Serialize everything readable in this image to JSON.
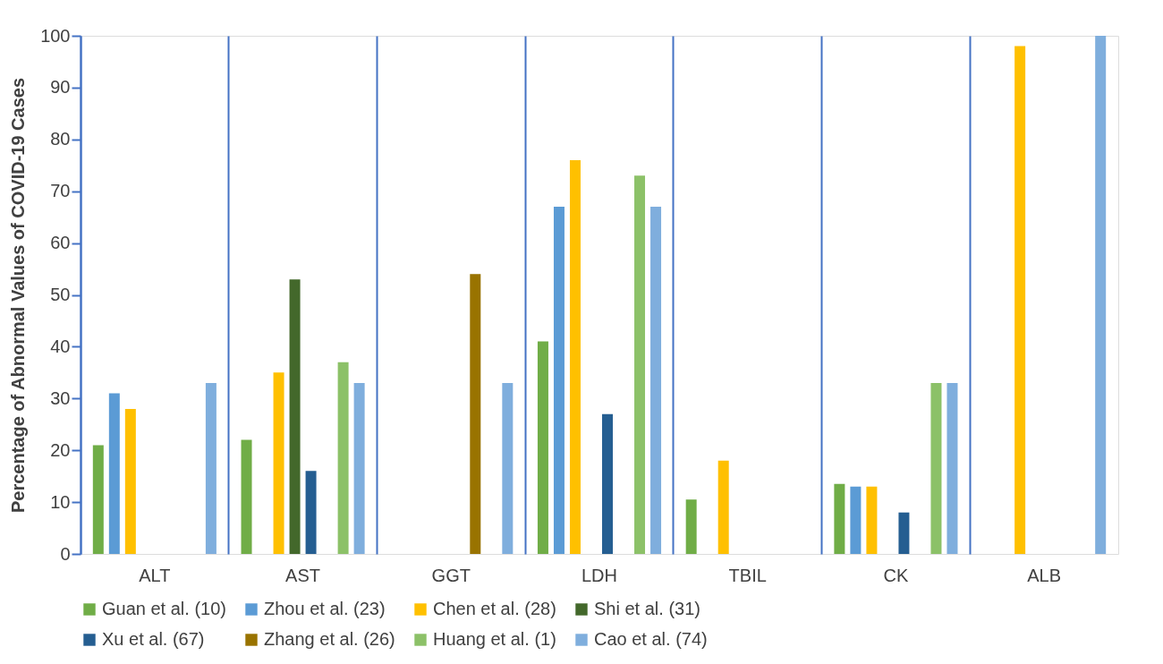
{
  "chart_data": {
    "type": "bar",
    "ylabel": "Percentage of Abnormal Values of COVID-19 Cases",
    "categories": [
      "ALT",
      "AST",
      "GGT",
      "LDH",
      "TBIL",
      "CK",
      "ALB"
    ],
    "series": [
      {
        "name": "Guan et al. (10)",
        "color": "#70ad47",
        "values": [
          21,
          22,
          null,
          41,
          10.5,
          13.5,
          null
        ]
      },
      {
        "name": "Zhou et al. (23)",
        "color": "#5b9bd5",
        "values": [
          31,
          null,
          null,
          67,
          null,
          13,
          null
        ]
      },
      {
        "name": "Chen et al. (28)",
        "color": "#ffc000",
        "values": [
          28,
          35,
          null,
          76,
          18,
          13,
          98
        ]
      },
      {
        "name": "Shi et al. (31)",
        "color": "#43682b",
        "values": [
          null,
          53,
          null,
          null,
          null,
          null,
          null
        ]
      },
      {
        "name": "Xu et al. (67)",
        "color": "#255e91",
        "values": [
          null,
          16,
          null,
          27,
          null,
          8,
          null
        ]
      },
      {
        "name": "Zhang et al. (26)",
        "color": "#997300",
        "values": [
          null,
          null,
          54,
          null,
          null,
          null,
          null
        ]
      },
      {
        "name": "Huang et al. (1)",
        "color": "#8cc168",
        "values": [
          null,
          37,
          null,
          73,
          null,
          33,
          null
        ]
      },
      {
        "name": "Cao et al. (74)",
        "color": "#7faedd",
        "values": [
          33,
          33,
          33,
          67,
          null,
          33,
          100
        ]
      }
    ],
    "ylim": [
      0,
      100
    ],
    "yticks": [
      0,
      10,
      20,
      30,
      40,
      50,
      60,
      70,
      80,
      90,
      100
    ],
    "grid": "x",
    "legend": "bottom"
  }
}
